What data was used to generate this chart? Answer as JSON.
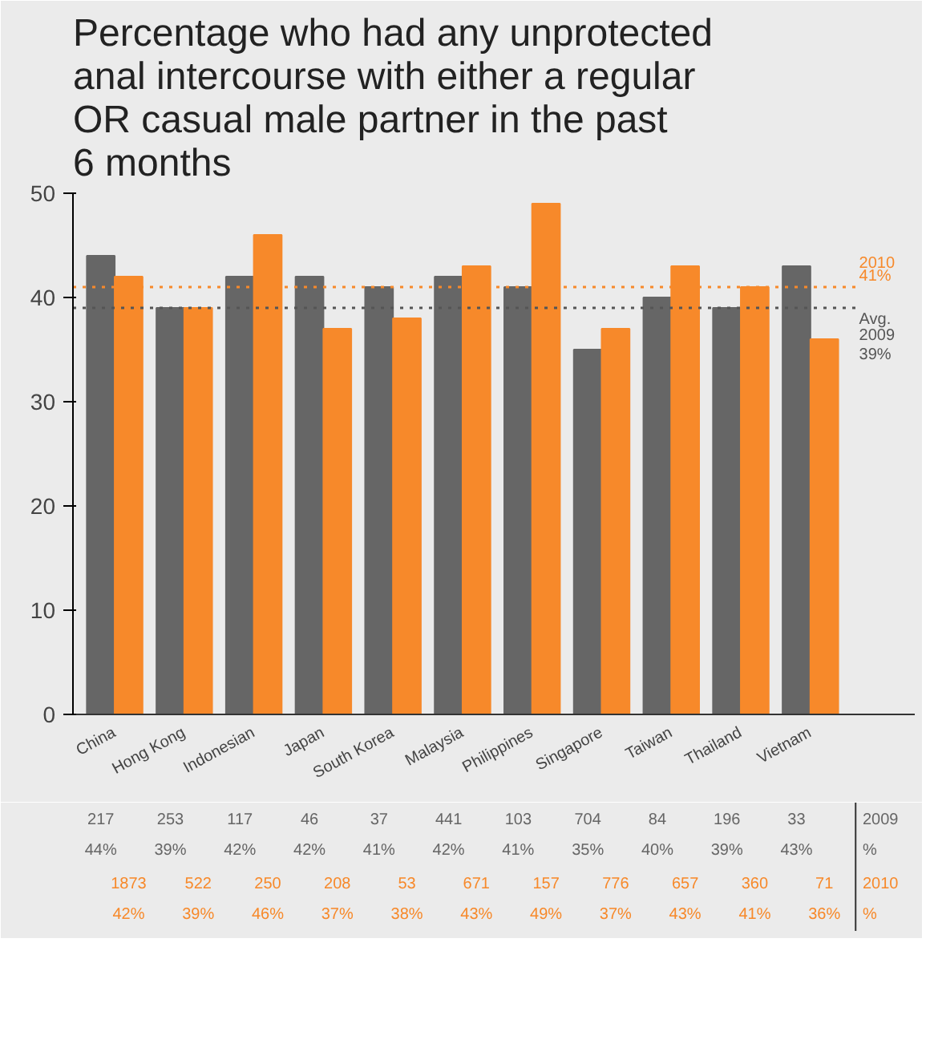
{
  "chart_data": {
    "type": "bar",
    "title": "Percentage who had any unprotected\nanal intercourse with either a regular\nOR casual male partner in the past\n6 months",
    "categories": [
      "China",
      "Hong Kong",
      "Indonesian",
      "Japan",
      "South Korea",
      "Malaysia",
      "Philippines",
      "Singapore",
      "Taiwan",
      "Thailand",
      "Vietnam"
    ],
    "series": [
      {
        "name": "2009",
        "color": "#666666",
        "values": [
          44,
          39,
          42,
          42,
          41,
          42,
          41,
          35,
          40,
          39,
          43
        ],
        "value_labels": [
          "217\n44%",
          "253\n39%",
          "117\n42%",
          "46\n42%",
          "37\n41%",
          "441\n42%",
          "103\n41%",
          "704\n35%",
          "84\n40%",
          "196\n39%",
          "33\n43%"
        ]
      },
      {
        "name": "2010",
        "color": "#f7892a",
        "values": [
          42,
          39,
          46,
          37,
          38,
          43,
          49,
          37,
          43,
          41,
          36
        ],
        "value_labels": [
          "1873\n42%",
          "522\n39%",
          "250\n46%",
          "208\n37%",
          "53\n38%",
          "671\n43%",
          "157\n49%",
          "776\n37%",
          "657\n43%",
          "360\n41%",
          "71\n36%"
        ]
      }
    ],
    "annotations": [
      "%",
      "%"
    ],
    "ylim": [
      0,
      50
    ],
    "yticks": [
      0,
      10,
      20,
      30,
      40,
      50
    ],
    "grid": false,
    "ref_lines": [
      {
        "axis": "y",
        "value": 41,
        "label": "2010\n41%",
        "color": "#f7892a",
        "line_style": "dotted"
      },
      {
        "axis": "y",
        "value": 39,
        "label": "Avg.\n2009\n39%",
        "color": "#555555",
        "line_style": "dotted"
      }
    ]
  }
}
